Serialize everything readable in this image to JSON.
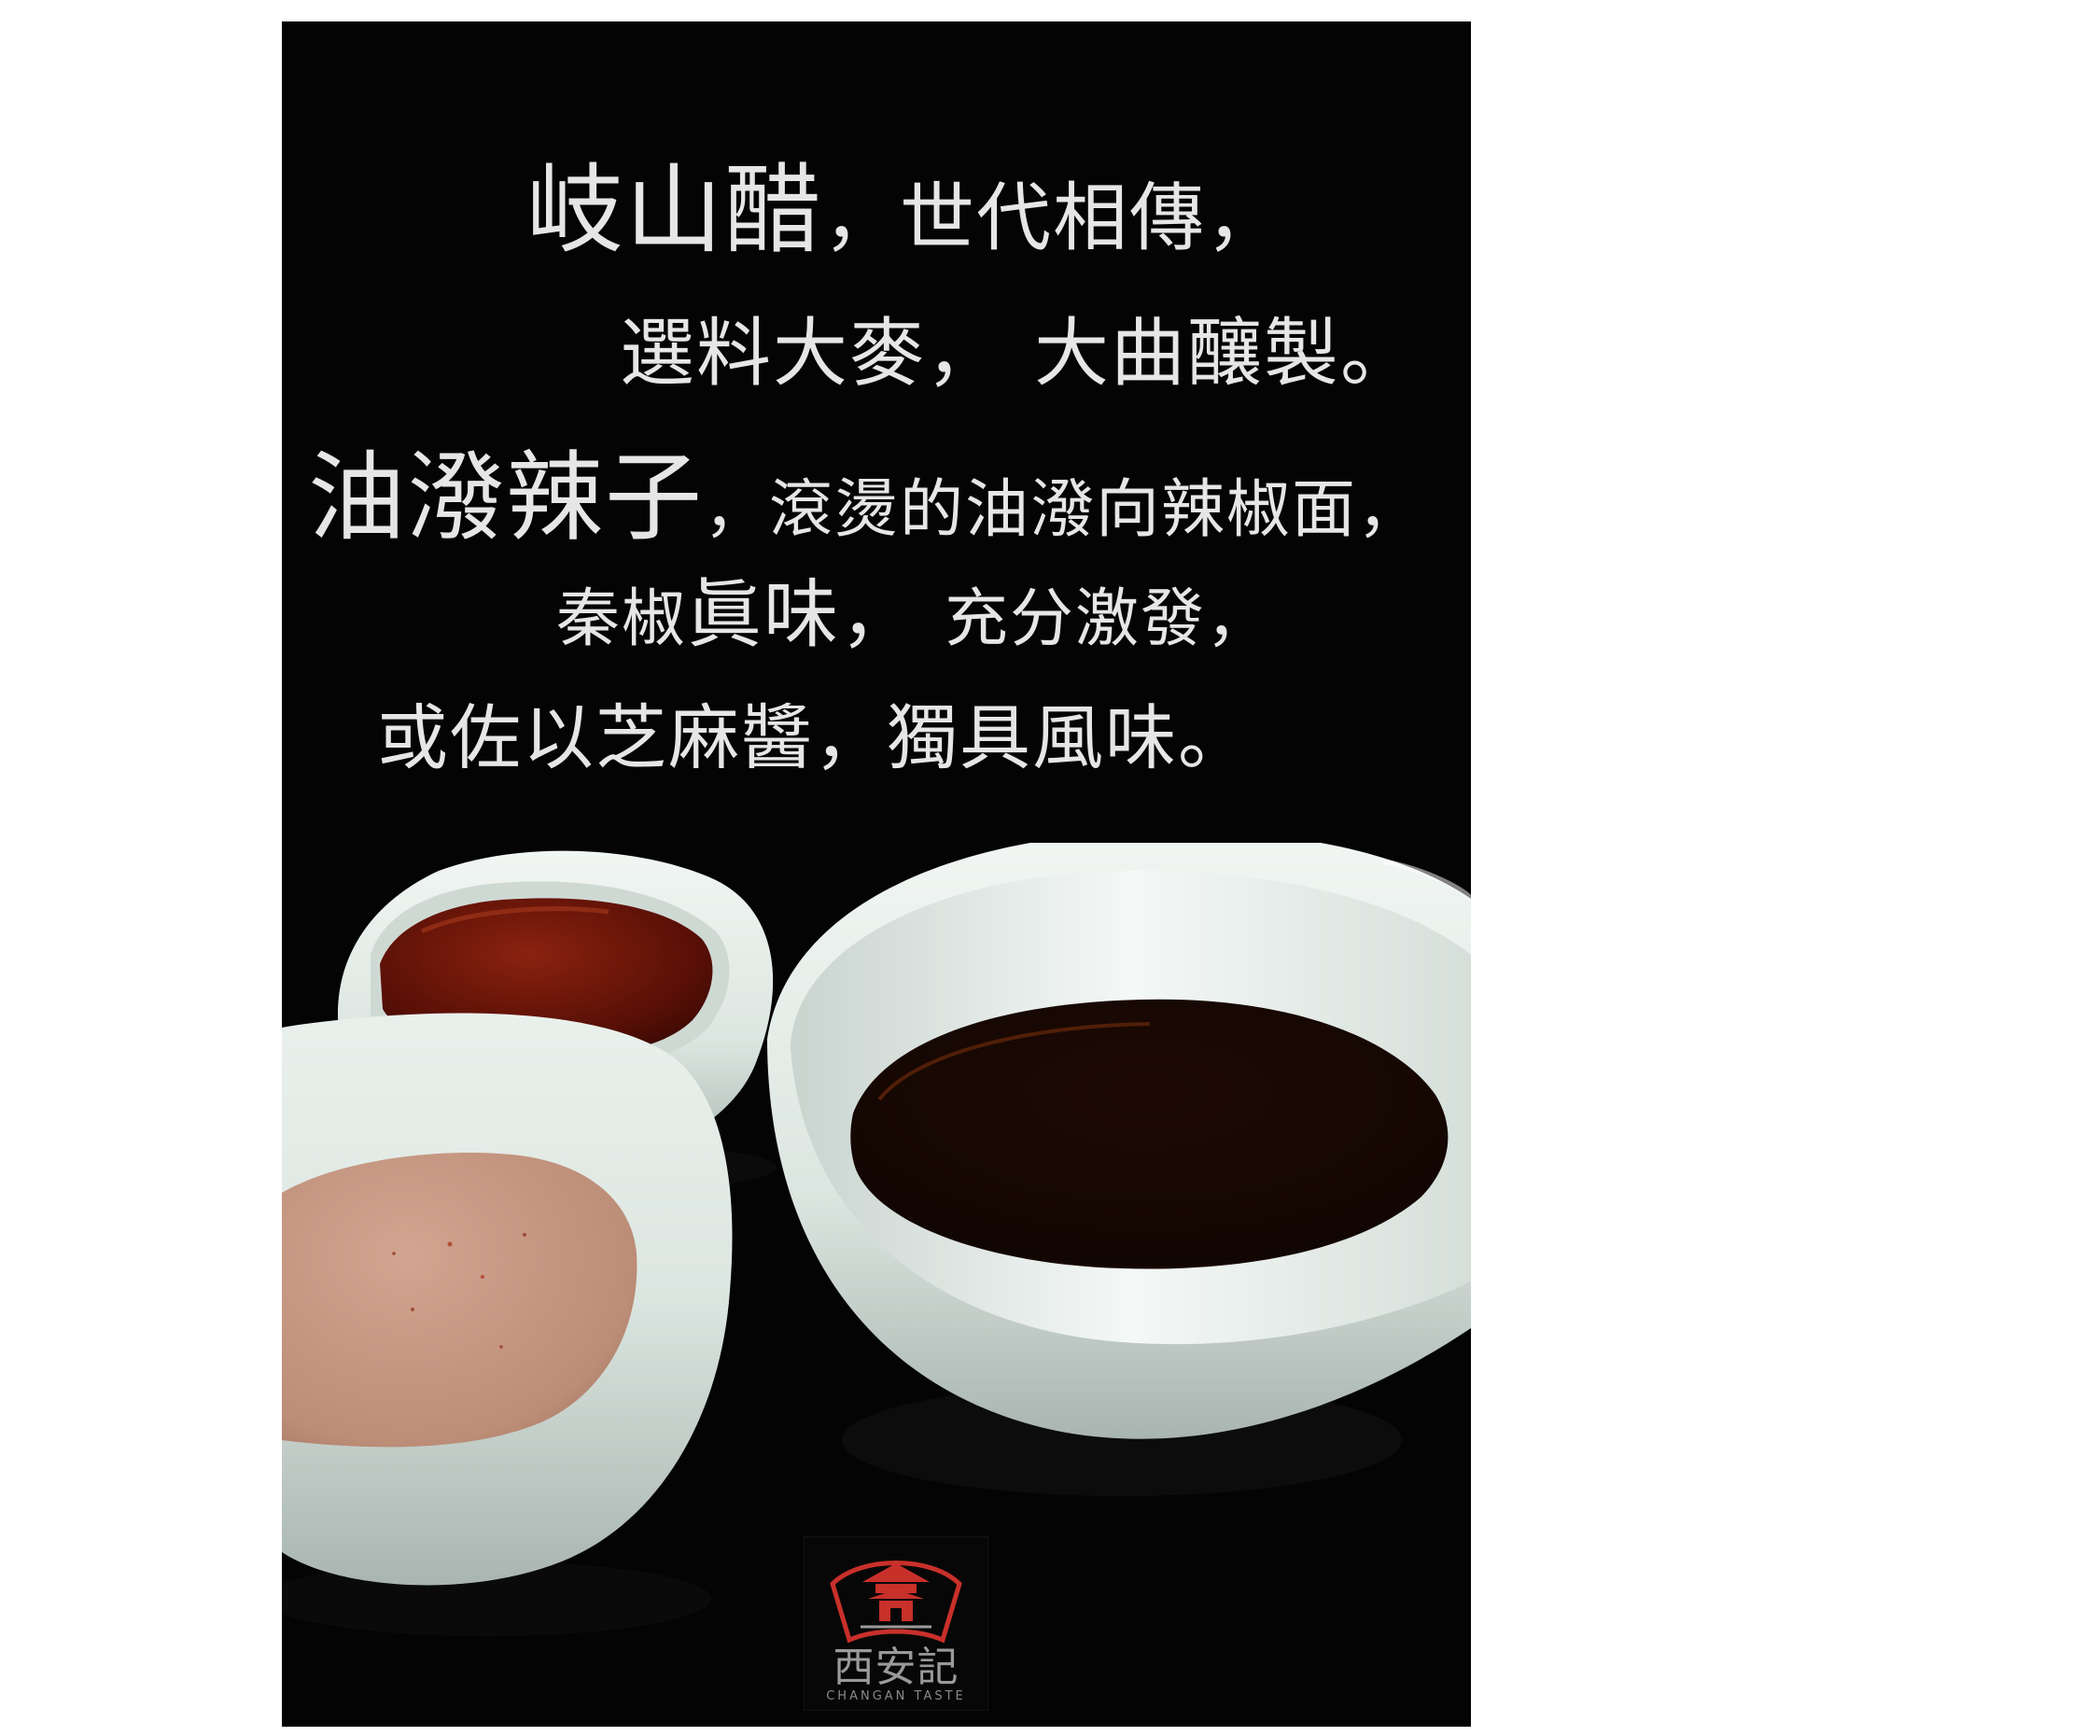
{
  "poster": {
    "lines": [
      {
        "a": "岐山醋",
        "b": "，世代相傳，"
      },
      {
        "a": "選料大麥，",
        "b": "大曲釀製。"
      },
      {
        "a": "油潑辣子",
        "b": "，滾燙的油潑向辣椒面，"
      },
      {
        "a": "秦椒",
        "b": "眞味，",
        "c": "充分激發，"
      },
      {
        "a": "或佐以芝麻醬，獨具風味。"
      }
    ],
    "photo": {
      "subjects": [
        "chili-oil-dish",
        "sesame-paste-dish",
        "vinegar-bowl"
      ],
      "colors": {
        "background": "#040404",
        "porcelain": "#e9f0ec",
        "chili_oil": "#6d1408",
        "sesame_paste": "#c4967f",
        "vinegar": "#1a0904"
      }
    },
    "logo": {
      "name": "西安記",
      "subtitle": "CHANGAN TASTE"
    }
  }
}
